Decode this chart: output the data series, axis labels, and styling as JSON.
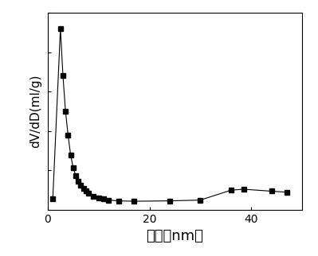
{
  "x": [
    1.0,
    2.5,
    3.0,
    3.5,
    4.0,
    4.5,
    5.0,
    5.5,
    6.0,
    6.5,
    7.0,
    7.5,
    8.0,
    9.0,
    10.0,
    11.0,
    12.0,
    14.0,
    17.0,
    24.0,
    30.0,
    36.0,
    38.5,
    44.0,
    47.0
  ],
  "y": [
    0.055,
    0.92,
    0.68,
    0.5,
    0.38,
    0.28,
    0.215,
    0.175,
    0.145,
    0.125,
    0.108,
    0.095,
    0.085,
    0.07,
    0.062,
    0.055,
    0.05,
    0.046,
    0.044,
    0.046,
    0.05,
    0.1,
    0.105,
    0.095,
    0.09
  ],
  "xlabel": "孔径（nm）",
  "ylabel": "dV/dD(ml/g)",
  "xlim": [
    0,
    50
  ],
  "ylim": [
    0,
    1.0
  ],
  "xticks": [
    0,
    20,
    40
  ],
  "line_color": "#000000",
  "marker": "s",
  "marker_size": 4,
  "bg_color": "#ffffff",
  "xlabel_fontsize": 13,
  "ylabel_fontsize": 11,
  "figsize": [
    3.99,
    3.22
  ],
  "dpi": 100
}
